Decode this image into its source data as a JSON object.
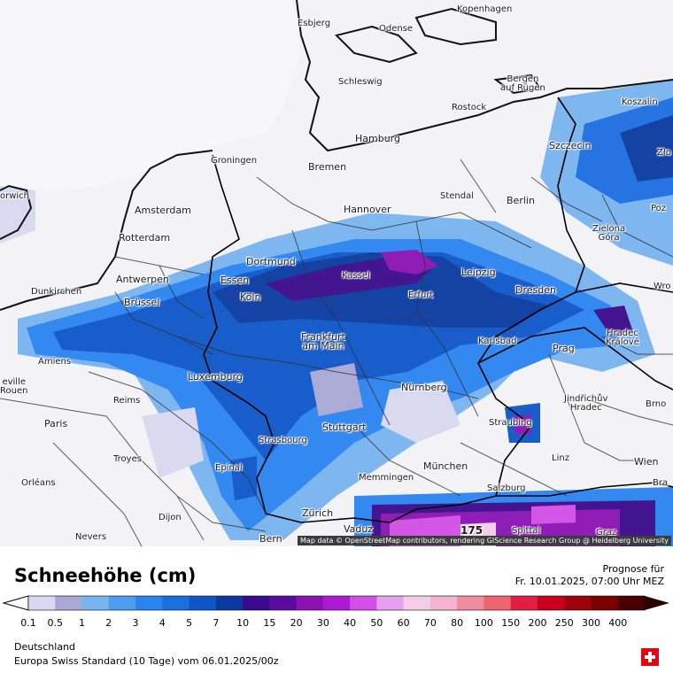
{
  "legend": {
    "title": "Schneehöhe (cm)",
    "forecast_label": "Prognose für",
    "forecast_time": "Fr. 10.01.2025, 07:00 Uhr MEZ",
    "region": "Deutschland",
    "model_run": "Europa Swiss Standard (10 Tage)  vom  06.01.2025/00z",
    "ticks": [
      "0.1",
      "0.5",
      "1",
      "2",
      "3",
      "4",
      "5",
      "7",
      "10",
      "15",
      "20",
      "30",
      "40",
      "50",
      "60",
      "70",
      "80",
      "100",
      "150",
      "200",
      "250",
      "300",
      "400"
    ],
    "colors": [
      "#d8d8f0",
      "#a8a8d4",
      "#78b4f0",
      "#4e9cf0",
      "#2a84f0",
      "#1a6ee0",
      "#0e56c8",
      "#0a3aa0",
      "#3a0a8c",
      "#5a0aa0",
      "#8c12b4",
      "#b018d8",
      "#d24ee6",
      "#e6a0f0",
      "#f4cde8",
      "#f4b4d0",
      "#f08ca0",
      "#f0646e",
      "#e01e46",
      "#c8001e",
      "#a0000a",
      "#7a0000",
      "#4a0000"
    ],
    "flag_icon": "swiss-flag-icon"
  },
  "map": {
    "attribution": "Map data © OpenStreetMap contributors, rendering GIScience Research Group @ Heidelberg University",
    "max_value_label": "175",
    "cities": [
      {
        "id": "esbjerg",
        "name": "Esbjerg"
      },
      {
        "id": "odense",
        "name": "Odense"
      },
      {
        "id": "kopenhagen",
        "name": "Kopenhagen"
      },
      {
        "id": "schleswig",
        "name": "Schleswig"
      },
      {
        "id": "bergen",
        "name": "Bergen\nauf Rügen"
      },
      {
        "id": "rostock",
        "name": "Rostock"
      },
      {
        "id": "koszalin",
        "name": "Koszalin"
      },
      {
        "id": "hamburg",
        "name": "Hamburg"
      },
      {
        "id": "szczecin",
        "name": "Szczecin"
      },
      {
        "id": "bremen",
        "name": "Bremen"
      },
      {
        "id": "groningen",
        "name": "Groningen"
      },
      {
        "id": "norwich",
        "name": "orwich"
      },
      {
        "id": "amsterdam",
        "name": "Amsterdam"
      },
      {
        "id": "hannover",
        "name": "Hannover"
      },
      {
        "id": "stendal",
        "name": "Stendal"
      },
      {
        "id": "berlin",
        "name": "Berlin"
      },
      {
        "id": "zielona",
        "name": "Zielona\nGóra"
      },
      {
        "id": "poz",
        "name": "Poz"
      },
      {
        "id": "rotterdam",
        "name": "Rotterdam"
      },
      {
        "id": "dortmund",
        "name": "Dortmund"
      },
      {
        "id": "essen",
        "name": "Essen"
      },
      {
        "id": "kassel",
        "name": "Kassel"
      },
      {
        "id": "leipzig",
        "name": "Leipzig"
      },
      {
        "id": "antwerpen",
        "name": "Antwerpen"
      },
      {
        "id": "dunkirchen",
        "name": "Dunkirchen"
      },
      {
        "id": "koln",
        "name": "Köln"
      },
      {
        "id": "erfurt",
        "name": "Erfurt"
      },
      {
        "id": "dresden",
        "name": "Dresden"
      },
      {
        "id": "wro",
        "name": "Wro"
      },
      {
        "id": "brussel",
        "name": "Brüssel"
      },
      {
        "id": "frankfurt",
        "name": "Frankfurt\nam Main"
      },
      {
        "id": "karlsbad",
        "name": "Karlsbad"
      },
      {
        "id": "hradec",
        "name": "Hradec\nKrálové"
      },
      {
        "id": "amiens",
        "name": "Amiens"
      },
      {
        "id": "prag",
        "name": "Prag"
      },
      {
        "id": "rouen",
        "name": "eville\nRouen"
      },
      {
        "id": "luxemburg",
        "name": "Luxemburg"
      },
      {
        "id": "nurnberg",
        "name": "Nürnberg"
      },
      {
        "id": "reims",
        "name": "Reims"
      },
      {
        "id": "jindrichuv",
        "name": "Jindřichův\nHradec"
      },
      {
        "id": "brno",
        "name": "Brno"
      },
      {
        "id": "paris",
        "name": "Paris"
      },
      {
        "id": "straubing",
        "name": "Straubing"
      },
      {
        "id": "stuttgart",
        "name": "Stuttgart"
      },
      {
        "id": "strasbourg",
        "name": "Strasbourg"
      },
      {
        "id": "troyes",
        "name": "Troyes"
      },
      {
        "id": "linz",
        "name": "Linz"
      },
      {
        "id": "wien",
        "name": "Wien"
      },
      {
        "id": "epinal",
        "name": "Epinal"
      },
      {
        "id": "munchen",
        "name": "München"
      },
      {
        "id": "memmingen",
        "name": "Memmingen"
      },
      {
        "id": "orleans",
        "name": "Orléans"
      },
      {
        "id": "salzburg",
        "name": "Salzburg"
      },
      {
        "id": "bra",
        "name": "Bra"
      },
      {
        "id": "zurich",
        "name": "Zürich"
      },
      {
        "id": "dijon",
        "name": "Dijon"
      },
      {
        "id": "vaduz",
        "name": "Vaduz"
      },
      {
        "id": "spittal",
        "name": "Spittal"
      },
      {
        "id": "graz",
        "name": "Graz"
      },
      {
        "id": "nevers",
        "name": "Nevers"
      },
      {
        "id": "bern",
        "name": "Bern"
      },
      {
        "id": "zlo",
        "name": "Zło"
      }
    ]
  }
}
